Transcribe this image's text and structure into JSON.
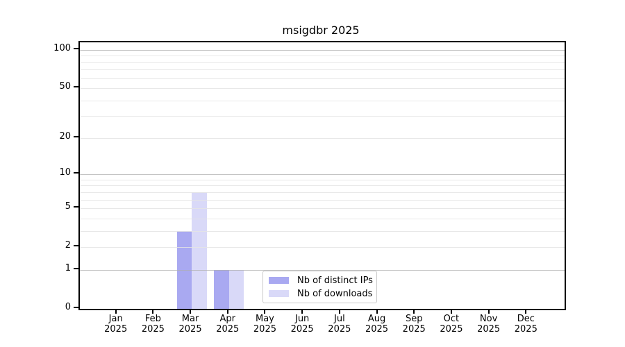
{
  "chart_data": {
    "type": "bar",
    "title": "msigdbr 2025",
    "categories": [
      "Jan 2025",
      "Feb 2025",
      "Mar 2025",
      "Apr 2025",
      "May 2025",
      "Jun 2025",
      "Jul 2025",
      "Aug 2025",
      "Sep 2025",
      "Oct 2025",
      "Nov 2025",
      "Dec 2025"
    ],
    "series": [
      {
        "name": "Nb of distinct IPs",
        "color": "#a9a9f1",
        "values": [
          0,
          0,
          3,
          1,
          0,
          0,
          0,
          0,
          0,
          0,
          0,
          0
        ]
      },
      {
        "name": "Nb of downloads",
        "color": "#d9d9f8",
        "values": [
          0,
          0,
          7,
          1,
          0,
          0,
          0,
          0,
          0,
          0,
          0,
          0
        ]
      }
    ],
    "xlabel": "",
    "ylabel": "",
    "yscale": "log1p",
    "ylim": [
      0,
      115
    ],
    "ytick_values": [
      0,
      1,
      2,
      5,
      10,
      20,
      50,
      100
    ],
    "ytick_major_values": [
      1,
      10,
      100
    ],
    "ytick_minor_values": [
      2,
      3,
      4,
      5,
      6,
      7,
      8,
      9,
      20,
      30,
      40,
      50,
      60,
      70,
      80,
      90
    ],
    "grid": "horizontal",
    "legend_position": "lower center"
  },
  "colors": {
    "grid_major": "#c3c3c3",
    "grid_minor": "#ececec",
    "spine": "#000000",
    "background": "#ffffff"
  }
}
